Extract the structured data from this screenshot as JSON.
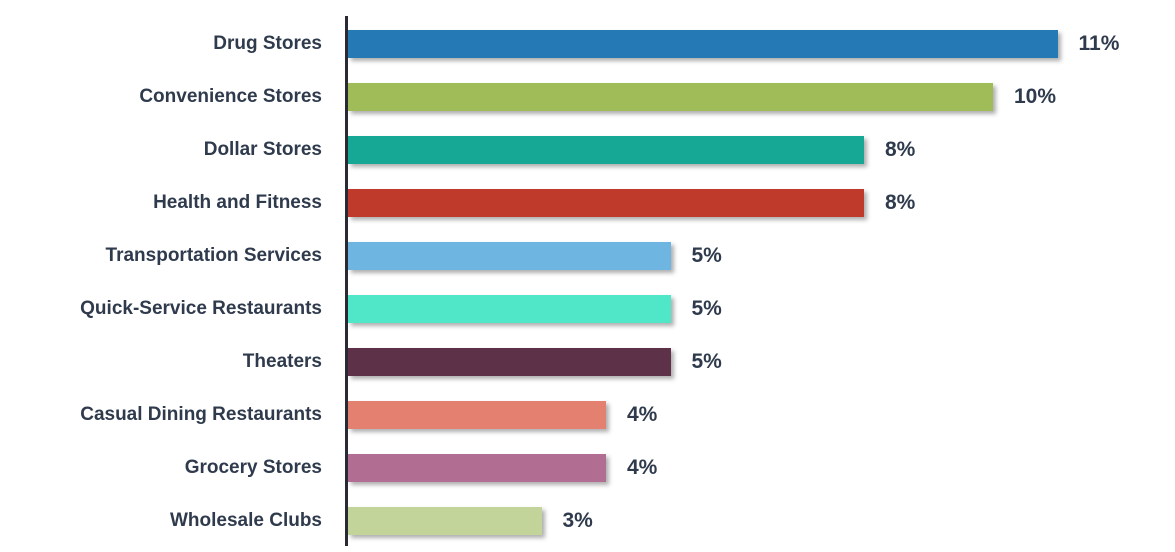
{
  "chart_data": {
    "type": "bar",
    "orientation": "horizontal",
    "title": "",
    "xlabel": "",
    "ylabel": "",
    "categories": [
      "Drug Stores",
      "Convenience Stores",
      "Dollar Stores",
      "Health and Fitness",
      "Transportation Services",
      "Quick-Service Restaurants",
      "Theaters",
      "Casual Dining Restaurants",
      "Grocery Stores",
      "Wholesale Clubs"
    ],
    "values": [
      11,
      10,
      8,
      8,
      5,
      5,
      5,
      4,
      4,
      3
    ],
    "value_labels": [
      "11%",
      "10%",
      "8%",
      "8%",
      "5%",
      "5%",
      "5%",
      "4%",
      "4%",
      "3%"
    ],
    "unit": "%",
    "xlim": [
      0,
      11
    ],
    "grid": false,
    "legend": "none",
    "bar_colors": [
      "#2579b5",
      "#9fbc58",
      "#17a795",
      "#c03a2c",
      "#6eb5e2",
      "#50e7c9",
      "#5d3147",
      "#e3806f",
      "#b26d92",
      "#c3d49a"
    ],
    "axis_color": "#2a2a35",
    "label_color": "#2f3b4d",
    "background": "#ffffff"
  }
}
